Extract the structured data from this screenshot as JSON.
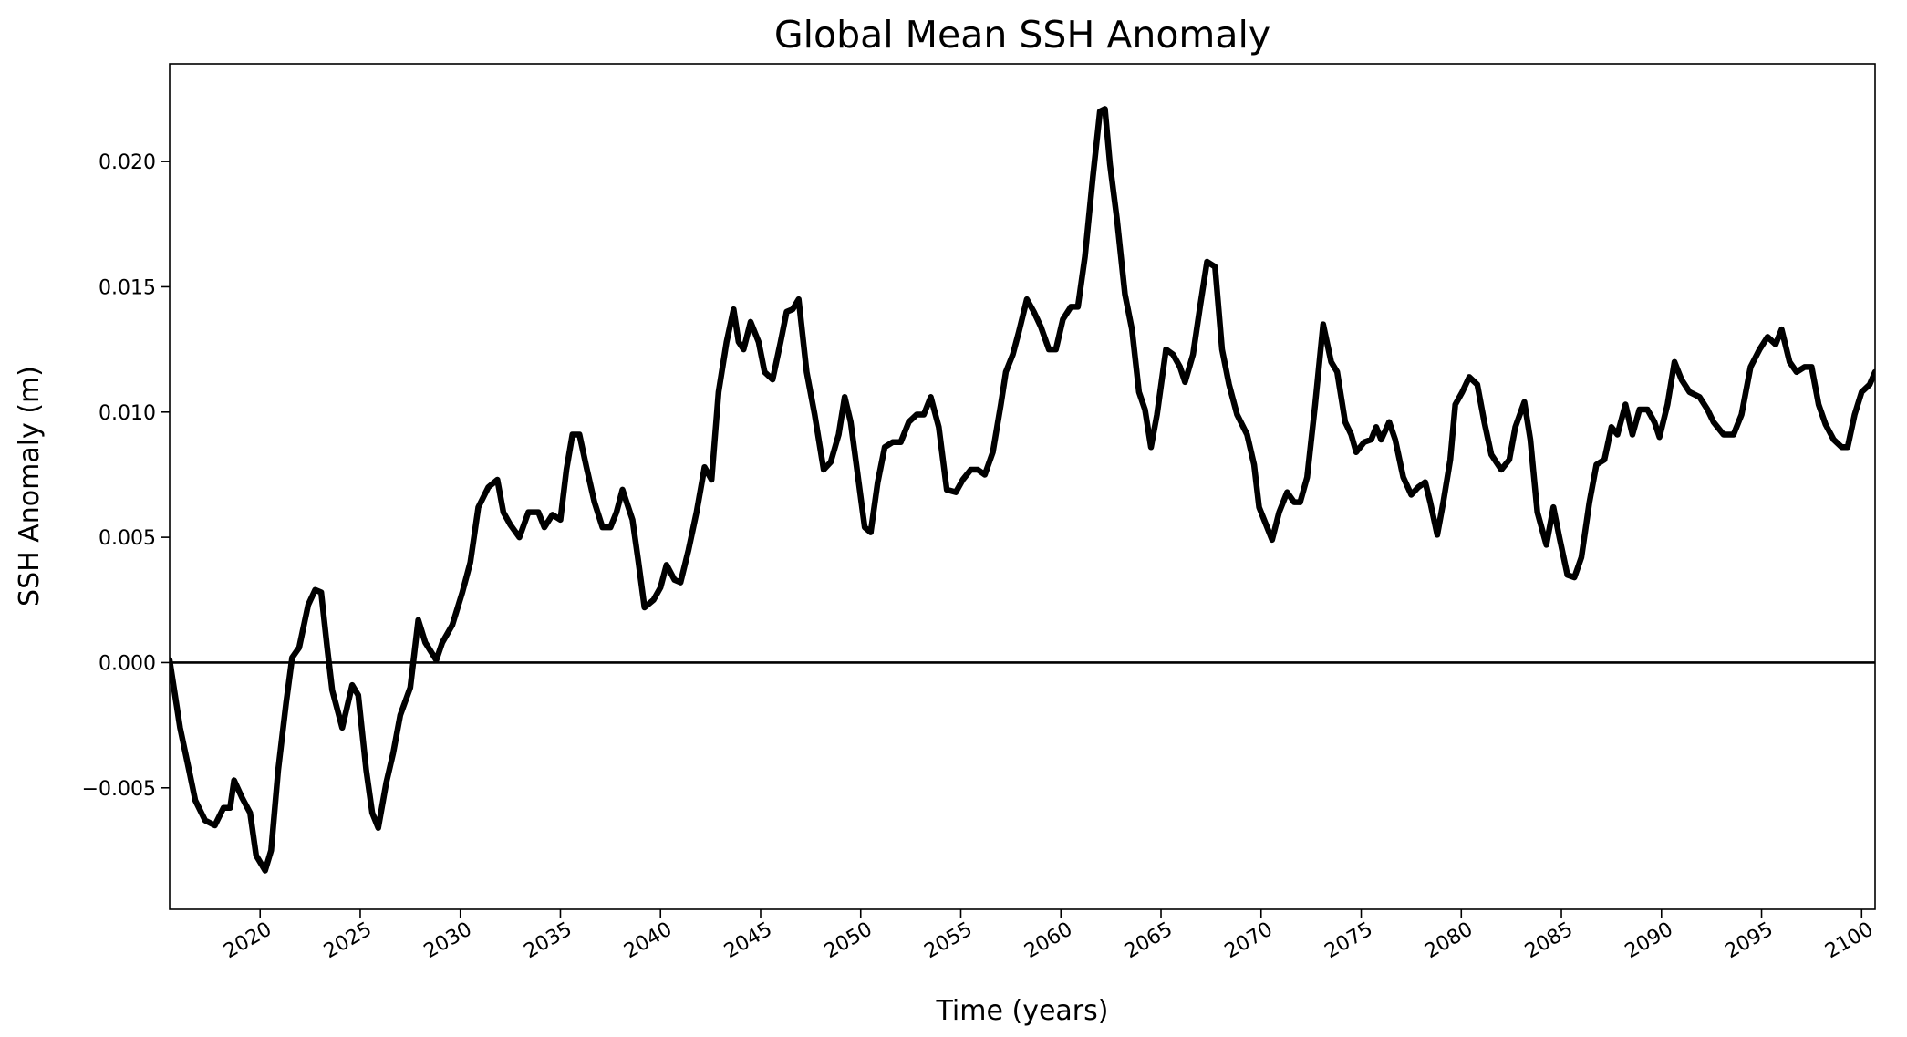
{
  "chart_data": {
    "type": "line",
    "title": "Global Mean SSH Anomaly",
    "xlabel": "Time (years)",
    "ylabel": "SSH Anomaly (m)",
    "xlim": [
      2015.48,
      2100.67
    ],
    "ylim": [
      -0.00985,
      0.0239
    ],
    "xticks": [
      2020,
      2025,
      2030,
      2035,
      2040,
      2045,
      2050,
      2055,
      2060,
      2065,
      2070,
      2075,
      2080,
      2085,
      2090,
      2095,
      2100
    ],
    "yticks": [
      {
        "value": -0.005,
        "label": "−0.005"
      },
      {
        "value": 0,
        "label": "0.000"
      },
      {
        "value": 0.005,
        "label": "0.005"
      },
      {
        "value": 0.01,
        "label": "0.010"
      },
      {
        "value": 0.015,
        "label": "0.015"
      },
      {
        "value": 0.02,
        "label": "0.020"
      }
    ],
    "hline": 0,
    "series": [
      {
        "color": "#000000",
        "x": [
          2015.48,
          2016.0,
          2016.45,
          2016.76,
          2017.25,
          2017.74,
          2018.17,
          2018.5,
          2018.7,
          2019.1,
          2019.5,
          2019.8,
          2020.25,
          2020.55,
          2020.9,
          2021.3,
          2021.6,
          2021.95,
          2022.4,
          2022.75,
          2023.05,
          2023.35,
          2023.6,
          2024.1,
          2024.6,
          2024.9,
          2025.3,
          2025.6,
          2025.9,
          2026.3,
          2026.65,
          2027.0,
          2027.5,
          2027.9,
          2028.25,
          2028.8,
          2029.1,
          2029.6,
          2030.1,
          2030.5,
          2030.9,
          2031.4,
          2031.85,
          2032.15,
          2032.5,
          2032.95,
          2033.4,
          2033.9,
          2034.2,
          2034.6,
          2035.0,
          2035.3,
          2035.6,
          2035.95,
          2036.3,
          2036.7,
          2037.1,
          2037.5,
          2037.8,
          2038.1,
          2038.6,
          2038.9,
          2039.2,
          2039.65,
          2040.0,
          2040.3,
          2040.7,
          2041.0,
          2041.4,
          2041.8,
          2042.2,
          2042.55,
          2042.9,
          2043.3,
          2043.65,
          2043.9,
          2044.15,
          2044.5,
          2044.9,
          2045.2,
          2045.6,
          2046.0,
          2046.3,
          2046.6,
          2046.9,
          2047.3,
          2047.7,
          2048.15,
          2048.5,
          2048.9,
          2049.2,
          2049.5,
          2049.9,
          2050.2,
          2050.5,
          2050.85,
          2051.2,
          2051.6,
          2052.0,
          2052.4,
          2052.8,
          2053.15,
          2053.5,
          2053.9,
          2054.3,
          2054.75,
          2055.1,
          2055.5,
          2055.85,
          2056.2,
          2056.6,
          2057.0,
          2057.25,
          2057.6,
          2057.9,
          2058.3,
          2058.65,
          2059.0,
          2059.4,
          2059.75,
          2060.1,
          2060.5,
          2060.85,
          2061.2,
          2061.6,
          2061.95,
          2062.2,
          2062.45,
          2062.8,
          2063.2,
          2063.55,
          2063.9,
          2064.2,
          2064.5,
          2064.8,
          2065.25,
          2065.6,
          2065.95,
          2066.2,
          2066.6,
          2066.95,
          2067.3,
          2067.7,
          2068.05,
          2068.4,
          2068.8,
          2069.3,
          2069.65,
          2069.9,
          2070.25,
          2070.55,
          2070.9,
          2071.3,
          2071.65,
          2071.95,
          2072.3,
          2072.7,
          2073.1,
          2073.5,
          2073.8,
          2074.2,
          2074.5,
          2074.75,
          2075.15,
          2075.5,
          2075.75,
          2076.0,
          2076.4,
          2076.7,
          2077.1,
          2077.5,
          2077.85,
          2078.2,
          2078.45,
          2078.8,
          2079.1,
          2079.45,
          2079.7,
          2080.05,
          2080.4,
          2080.8,
          2081.15,
          2081.5,
          2082.0,
          2082.4,
          2082.7,
          2083.15,
          2083.45,
          2083.8,
          2084.25,
          2084.6,
          2084.9,
          2085.3,
          2085.65,
          2086.0,
          2086.4,
          2086.75,
          2087.15,
          2087.5,
          2087.8,
          2088.2,
          2088.55,
          2088.9,
          2089.3,
          2089.65,
          2089.9,
          2090.3,
          2090.65,
          2091.0,
          2091.4,
          2091.9,
          2092.3,
          2092.6,
          2093.1,
          2093.6,
          2094.0,
          2094.45,
          2094.9,
          2095.3,
          2095.7,
          2096.0,
          2096.4,
          2096.75,
          2097.15,
          2097.5,
          2097.85,
          2098.2,
          2098.6,
          2099.0,
          2099.3,
          2099.65,
          2100.0,
          2100.4,
          2100.67
        ],
        "values": [
          0.0001,
          -0.0026,
          -0.0043,
          -0.0055,
          -0.0063,
          -0.0065,
          -0.0058,
          -0.0058,
          -0.0047,
          -0.0054,
          -0.006,
          -0.0077,
          -0.0083,
          -0.0075,
          -0.0043,
          -0.0016,
          0.0002,
          0.0006,
          0.0023,
          0.0029,
          0.0028,
          0.0006,
          -0.0011,
          -0.0026,
          -0.0009,
          -0.0013,
          -0.0043,
          -0.006,
          -0.0066,
          -0.0048,
          -0.0036,
          -0.0021,
          -0.001,
          0.0017,
          0.0008,
          0.0001,
          0.0008,
          0.0015,
          0.0028,
          0.004,
          0.0062,
          0.007,
          0.0073,
          0.006,
          0.0055,
          0.005,
          0.006,
          0.006,
          0.0054,
          0.0059,
          0.0057,
          0.0077,
          0.0091,
          0.0091,
          0.0078,
          0.0064,
          0.0054,
          0.0054,
          0.006,
          0.0069,
          0.0057,
          0.004,
          0.0022,
          0.0025,
          0.003,
          0.0039,
          0.0033,
          0.0032,
          0.0045,
          0.006,
          0.0078,
          0.0073,
          0.0108,
          0.0128,
          0.0141,
          0.0128,
          0.0125,
          0.0136,
          0.0128,
          0.0116,
          0.0113,
          0.0128,
          0.014,
          0.0141,
          0.0145,
          0.0116,
          0.0099,
          0.0077,
          0.008,
          0.0091,
          0.0106,
          0.0096,
          0.0072,
          0.0054,
          0.0052,
          0.0072,
          0.0086,
          0.0088,
          0.0088,
          0.0096,
          0.0099,
          0.0099,
          0.0106,
          0.0094,
          0.0069,
          0.0068,
          0.0073,
          0.0077,
          0.0077,
          0.0075,
          0.0084,
          0.0103,
          0.0116,
          0.0123,
          0.0132,
          0.0145,
          0.014,
          0.0134,
          0.0125,
          0.0125,
          0.0137,
          0.0142,
          0.0142,
          0.0162,
          0.0194,
          0.022,
          0.0221,
          0.0199,
          0.0177,
          0.0147,
          0.0133,
          0.0108,
          0.0101,
          0.0086,
          0.0099,
          0.0125,
          0.0123,
          0.0118,
          0.0112,
          0.0123,
          0.0142,
          0.016,
          0.0158,
          0.0125,
          0.0111,
          0.0099,
          0.0091,
          0.0079,
          0.0062,
          0.0055,
          0.0049,
          0.006,
          0.0068,
          0.0064,
          0.0064,
          0.0074,
          0.0103,
          0.0135,
          0.012,
          0.0116,
          0.0096,
          0.0091,
          0.0084,
          0.0088,
          0.0089,
          0.0094,
          0.0089,
          0.0096,
          0.0089,
          0.0074,
          0.0067,
          0.007,
          0.0072,
          0.0064,
          0.0051,
          0.0064,
          0.0081,
          0.0103,
          0.0108,
          0.0114,
          0.0111,
          0.0096,
          0.0083,
          0.0077,
          0.0081,
          0.0094,
          0.0104,
          0.0089,
          0.006,
          0.0047,
          0.0062,
          0.005,
          0.0035,
          0.0034,
          0.0042,
          0.0064,
          0.0079,
          0.0081,
          0.0094,
          0.0091,
          0.0103,
          0.0091,
          0.0101,
          0.0101,
          0.0096,
          0.009,
          0.0103,
          0.012,
          0.0113,
          0.0108,
          0.0106,
          0.0101,
          0.0096,
          0.0091,
          0.0091,
          0.0099,
          0.0118,
          0.0125,
          0.013,
          0.0127,
          0.0133,
          0.012,
          0.0116,
          0.0118,
          0.0118,
          0.0103,
          0.0095,
          0.0089,
          0.0086,
          0.0086,
          0.0099,
          0.0108,
          0.0111,
          0.0116
        ]
      }
    ]
  }
}
